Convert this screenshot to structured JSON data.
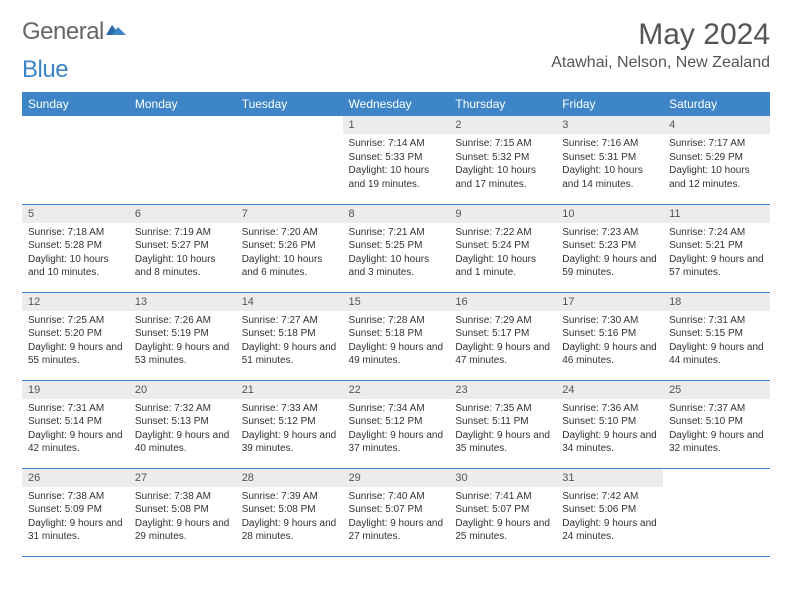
{
  "brand": {
    "part1": "General",
    "part2": "Blue"
  },
  "title": "May 2024",
  "location": "Atawhai, Nelson, New Zealand",
  "colors": {
    "header_bg": "#3d85c6",
    "header_text": "#ffffff",
    "daynum_bg": "#ececec",
    "border": "#3d85c6",
    "page_bg": "#ffffff",
    "text": "#333333"
  },
  "weekdays": [
    "Sunday",
    "Monday",
    "Tuesday",
    "Wednesday",
    "Thursday",
    "Friday",
    "Saturday"
  ],
  "weeks": [
    [
      {
        "n": "",
        "sr": "",
        "ss": "",
        "dl": "",
        "empty": true
      },
      {
        "n": "",
        "sr": "",
        "ss": "",
        "dl": "",
        "empty": true
      },
      {
        "n": "",
        "sr": "",
        "ss": "",
        "dl": "",
        "empty": true
      },
      {
        "n": "1",
        "sr": "Sunrise: 7:14 AM",
        "ss": "Sunset: 5:33 PM",
        "dl": "Daylight: 10 hours and 19 minutes."
      },
      {
        "n": "2",
        "sr": "Sunrise: 7:15 AM",
        "ss": "Sunset: 5:32 PM",
        "dl": "Daylight: 10 hours and 17 minutes."
      },
      {
        "n": "3",
        "sr": "Sunrise: 7:16 AM",
        "ss": "Sunset: 5:31 PM",
        "dl": "Daylight: 10 hours and 14 minutes."
      },
      {
        "n": "4",
        "sr": "Sunrise: 7:17 AM",
        "ss": "Sunset: 5:29 PM",
        "dl": "Daylight: 10 hours and 12 minutes."
      }
    ],
    [
      {
        "n": "5",
        "sr": "Sunrise: 7:18 AM",
        "ss": "Sunset: 5:28 PM",
        "dl": "Daylight: 10 hours and 10 minutes."
      },
      {
        "n": "6",
        "sr": "Sunrise: 7:19 AM",
        "ss": "Sunset: 5:27 PM",
        "dl": "Daylight: 10 hours and 8 minutes."
      },
      {
        "n": "7",
        "sr": "Sunrise: 7:20 AM",
        "ss": "Sunset: 5:26 PM",
        "dl": "Daylight: 10 hours and 6 minutes."
      },
      {
        "n": "8",
        "sr": "Sunrise: 7:21 AM",
        "ss": "Sunset: 5:25 PM",
        "dl": "Daylight: 10 hours and 3 minutes."
      },
      {
        "n": "9",
        "sr": "Sunrise: 7:22 AM",
        "ss": "Sunset: 5:24 PM",
        "dl": "Daylight: 10 hours and 1 minute."
      },
      {
        "n": "10",
        "sr": "Sunrise: 7:23 AM",
        "ss": "Sunset: 5:23 PM",
        "dl": "Daylight: 9 hours and 59 minutes."
      },
      {
        "n": "11",
        "sr": "Sunrise: 7:24 AM",
        "ss": "Sunset: 5:21 PM",
        "dl": "Daylight: 9 hours and 57 minutes."
      }
    ],
    [
      {
        "n": "12",
        "sr": "Sunrise: 7:25 AM",
        "ss": "Sunset: 5:20 PM",
        "dl": "Daylight: 9 hours and 55 minutes."
      },
      {
        "n": "13",
        "sr": "Sunrise: 7:26 AM",
        "ss": "Sunset: 5:19 PM",
        "dl": "Daylight: 9 hours and 53 minutes."
      },
      {
        "n": "14",
        "sr": "Sunrise: 7:27 AM",
        "ss": "Sunset: 5:18 PM",
        "dl": "Daylight: 9 hours and 51 minutes."
      },
      {
        "n": "15",
        "sr": "Sunrise: 7:28 AM",
        "ss": "Sunset: 5:18 PM",
        "dl": "Daylight: 9 hours and 49 minutes."
      },
      {
        "n": "16",
        "sr": "Sunrise: 7:29 AM",
        "ss": "Sunset: 5:17 PM",
        "dl": "Daylight: 9 hours and 47 minutes."
      },
      {
        "n": "17",
        "sr": "Sunrise: 7:30 AM",
        "ss": "Sunset: 5:16 PM",
        "dl": "Daylight: 9 hours and 46 minutes."
      },
      {
        "n": "18",
        "sr": "Sunrise: 7:31 AM",
        "ss": "Sunset: 5:15 PM",
        "dl": "Daylight: 9 hours and 44 minutes."
      }
    ],
    [
      {
        "n": "19",
        "sr": "Sunrise: 7:31 AM",
        "ss": "Sunset: 5:14 PM",
        "dl": "Daylight: 9 hours and 42 minutes."
      },
      {
        "n": "20",
        "sr": "Sunrise: 7:32 AM",
        "ss": "Sunset: 5:13 PM",
        "dl": "Daylight: 9 hours and 40 minutes."
      },
      {
        "n": "21",
        "sr": "Sunrise: 7:33 AM",
        "ss": "Sunset: 5:12 PM",
        "dl": "Daylight: 9 hours and 39 minutes."
      },
      {
        "n": "22",
        "sr": "Sunrise: 7:34 AM",
        "ss": "Sunset: 5:12 PM",
        "dl": "Daylight: 9 hours and 37 minutes."
      },
      {
        "n": "23",
        "sr": "Sunrise: 7:35 AM",
        "ss": "Sunset: 5:11 PM",
        "dl": "Daylight: 9 hours and 35 minutes."
      },
      {
        "n": "24",
        "sr": "Sunrise: 7:36 AM",
        "ss": "Sunset: 5:10 PM",
        "dl": "Daylight: 9 hours and 34 minutes."
      },
      {
        "n": "25",
        "sr": "Sunrise: 7:37 AM",
        "ss": "Sunset: 5:10 PM",
        "dl": "Daylight: 9 hours and 32 minutes."
      }
    ],
    [
      {
        "n": "26",
        "sr": "Sunrise: 7:38 AM",
        "ss": "Sunset: 5:09 PM",
        "dl": "Daylight: 9 hours and 31 minutes."
      },
      {
        "n": "27",
        "sr": "Sunrise: 7:38 AM",
        "ss": "Sunset: 5:08 PM",
        "dl": "Daylight: 9 hours and 29 minutes."
      },
      {
        "n": "28",
        "sr": "Sunrise: 7:39 AM",
        "ss": "Sunset: 5:08 PM",
        "dl": "Daylight: 9 hours and 28 minutes."
      },
      {
        "n": "29",
        "sr": "Sunrise: 7:40 AM",
        "ss": "Sunset: 5:07 PM",
        "dl": "Daylight: 9 hours and 27 minutes."
      },
      {
        "n": "30",
        "sr": "Sunrise: 7:41 AM",
        "ss": "Sunset: 5:07 PM",
        "dl": "Daylight: 9 hours and 25 minutes."
      },
      {
        "n": "31",
        "sr": "Sunrise: 7:42 AM",
        "ss": "Sunset: 5:06 PM",
        "dl": "Daylight: 9 hours and 24 minutes."
      },
      {
        "n": "",
        "sr": "",
        "ss": "",
        "dl": "",
        "empty": true
      }
    ]
  ]
}
